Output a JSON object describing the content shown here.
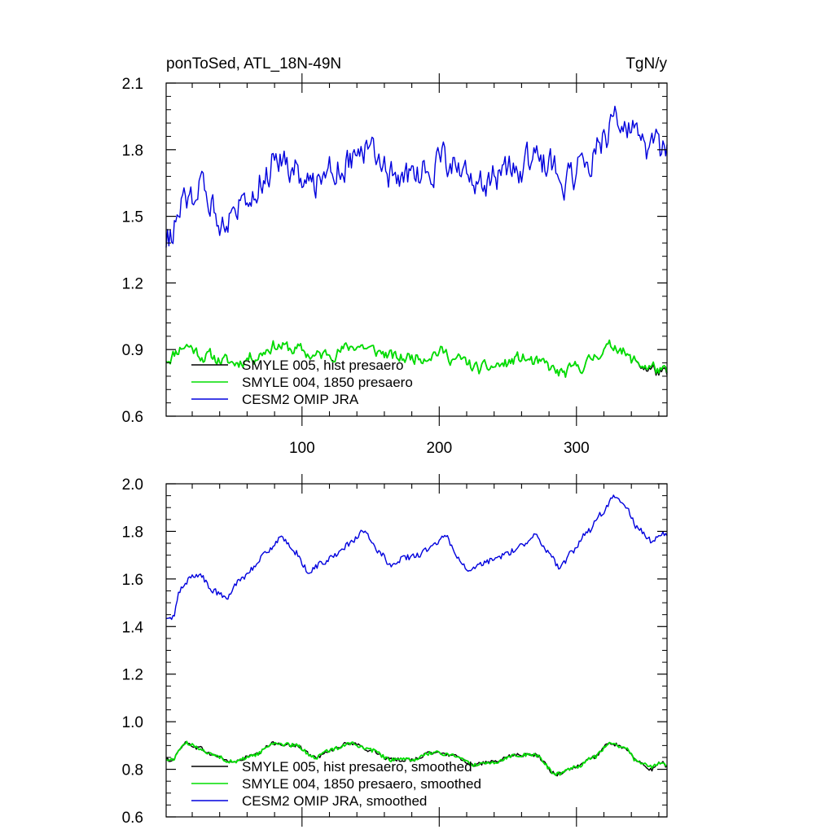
{
  "chart_data": [
    {
      "type": "line",
      "title": "ponToSed, ATL_18N-49N",
      "units": "TgN/y",
      "xlim": [
        1,
        366
      ],
      "ylim": [
        0.6,
        2.1
      ],
      "yticks": [
        "0.6",
        "0.9",
        "1.2",
        "1.5",
        "1.8",
        "2.1"
      ],
      "xticks": [
        "100",
        "200",
        "300"
      ],
      "legend_position": "bottom-left",
      "grid": false,
      "series": [
        {
          "name": "SMYLE 005, hist presaero",
          "color": "#000000",
          "knots": [
            [
              1,
              0.86
            ],
            [
              15,
              0.92
            ],
            [
              30,
              0.87
            ],
            [
              50,
              0.84
            ],
            [
              65,
              0.87
            ],
            [
              80,
              0.92
            ],
            [
              95,
              0.9
            ],
            [
              110,
              0.87
            ],
            [
              125,
              0.89
            ],
            [
              140,
              0.92
            ],
            [
              155,
              0.89
            ],
            [
              170,
              0.86
            ],
            [
              185,
              0.87
            ],
            [
              200,
              0.89
            ],
            [
              215,
              0.85
            ],
            [
              230,
              0.81
            ],
            [
              245,
              0.83
            ],
            [
              260,
              0.86
            ],
            [
              275,
              0.83
            ],
            [
              290,
              0.79
            ],
            [
              305,
              0.83
            ],
            [
              320,
              0.9
            ],
            [
              330,
              0.92
            ],
            [
              340,
              0.85
            ],
            [
              355,
              0.81
            ],
            [
              366,
              0.78
            ]
          ],
          "amp": 0.035
        },
        {
          "name": "SMYLE 004, 1850 presaero",
          "color": "#00dd00",
          "knots": [
            [
              1,
              0.86
            ],
            [
              15,
              0.92
            ],
            [
              30,
              0.87
            ],
            [
              50,
              0.84
            ],
            [
              65,
              0.87
            ],
            [
              80,
              0.92
            ],
            [
              95,
              0.9
            ],
            [
              110,
              0.87
            ],
            [
              125,
              0.89
            ],
            [
              140,
              0.92
            ],
            [
              155,
              0.89
            ],
            [
              170,
              0.86
            ],
            [
              185,
              0.87
            ],
            [
              200,
              0.89
            ],
            [
              215,
              0.85
            ],
            [
              230,
              0.81
            ],
            [
              245,
              0.83
            ],
            [
              260,
              0.86
            ],
            [
              275,
              0.83
            ],
            [
              290,
              0.79
            ],
            [
              305,
              0.83
            ],
            [
              320,
              0.9
            ],
            [
              330,
              0.92
            ],
            [
              340,
              0.85
            ],
            [
              355,
              0.82
            ],
            [
              366,
              0.79
            ]
          ],
          "amp": 0.035
        },
        {
          "name": "CESM2 OMIP JRA",
          "color": "#0000dd",
          "knots": [
            [
              1,
              1.39
            ],
            [
              8,
              1.46
            ],
            [
              15,
              1.57
            ],
            [
              25,
              1.62
            ],
            [
              35,
              1.55
            ],
            [
              42,
              1.5
            ],
            [
              50,
              1.52
            ],
            [
              60,
              1.62
            ],
            [
              70,
              1.67
            ],
            [
              82,
              1.77
            ],
            [
              95,
              1.72
            ],
            [
              105,
              1.63
            ],
            [
              115,
              1.7
            ],
            [
              130,
              1.75
            ],
            [
              145,
              1.8
            ],
            [
              160,
              1.72
            ],
            [
              170,
              1.65
            ],
            [
              185,
              1.7
            ],
            [
              200,
              1.76
            ],
            [
              210,
              1.72
            ],
            [
              225,
              1.62
            ],
            [
              240,
              1.68
            ],
            [
              255,
              1.7
            ],
            [
              270,
              1.76
            ],
            [
              280,
              1.73
            ],
            [
              290,
              1.66
            ],
            [
              305,
              1.72
            ],
            [
              318,
              1.85
            ],
            [
              330,
              1.95
            ],
            [
              340,
              1.88
            ],
            [
              350,
              1.78
            ],
            [
              360,
              1.8
            ],
            [
              366,
              1.76
            ]
          ],
          "amp": 0.09
        }
      ]
    },
    {
      "type": "line",
      "xlim": [
        1,
        366
      ],
      "ylim": [
        0.6,
        2.0
      ],
      "yticks": [
        "0.6",
        "0.8",
        "1.0",
        "1.2",
        "1.4",
        "1.6",
        "1.8",
        "2.0"
      ],
      "xticks": [],
      "legend_position": "bottom-left",
      "grid": false,
      "series": [
        {
          "name": "SMYLE 005, hist presaero, smoothed",
          "color": "#000000",
          "knots": [
            [
              5,
              0.84
            ],
            [
              15,
              0.91
            ],
            [
              25,
              0.89
            ],
            [
              35,
              0.86
            ],
            [
              50,
              0.83
            ],
            [
              65,
              0.86
            ],
            [
              80,
              0.91
            ],
            [
              95,
              0.9
            ],
            [
              110,
              0.85
            ],
            [
              120,
              0.88
            ],
            [
              135,
              0.91
            ],
            [
              150,
              0.88
            ],
            [
              165,
              0.84
            ],
            [
              180,
              0.84
            ],
            [
              195,
              0.87
            ],
            [
              210,
              0.86
            ],
            [
              225,
              0.82
            ],
            [
              240,
              0.83
            ],
            [
              255,
              0.86
            ],
            [
              270,
              0.86
            ],
            [
              285,
              0.78
            ],
            [
              300,
              0.81
            ],
            [
              312,
              0.85
            ],
            [
              325,
              0.91
            ],
            [
              335,
              0.89
            ],
            [
              345,
              0.83
            ],
            [
              355,
              0.8
            ],
            [
              362,
              0.83
            ],
            [
              366,
              0.81
            ]
          ],
          "amp": 0.008
        },
        {
          "name": "SMYLE 004, 1850 presaero, smoothed",
          "color": "#00dd00",
          "knots": [
            [
              5,
              0.84
            ],
            [
              15,
              0.91
            ],
            [
              25,
              0.89
            ],
            [
              35,
              0.86
            ],
            [
              50,
              0.83
            ],
            [
              65,
              0.86
            ],
            [
              80,
              0.91
            ],
            [
              95,
              0.9
            ],
            [
              110,
              0.85
            ],
            [
              120,
              0.88
            ],
            [
              135,
              0.91
            ],
            [
              150,
              0.88
            ],
            [
              165,
              0.84
            ],
            [
              180,
              0.84
            ],
            [
              195,
              0.87
            ],
            [
              210,
              0.86
            ],
            [
              225,
              0.82
            ],
            [
              240,
              0.83
            ],
            [
              255,
              0.86
            ],
            [
              270,
              0.86
            ],
            [
              285,
              0.78
            ],
            [
              300,
              0.81
            ],
            [
              312,
              0.85
            ],
            [
              325,
              0.91
            ],
            [
              335,
              0.89
            ],
            [
              345,
              0.83
            ],
            [
              355,
              0.81
            ],
            [
              362,
              0.83
            ],
            [
              366,
              0.82
            ]
          ],
          "amp": 0.008
        },
        {
          "name": "CESM2 OMIP JRA, smoothed",
          "color": "#0000dd",
          "knots": [
            [
              5,
              1.43
            ],
            [
              12,
              1.56
            ],
            [
              20,
              1.61
            ],
            [
              25,
              1.62
            ],
            [
              35,
              1.55
            ],
            [
              45,
              1.52
            ],
            [
              55,
              1.6
            ],
            [
              65,
              1.65
            ],
            [
              75,
              1.72
            ],
            [
              85,
              1.77
            ],
            [
              95,
              1.71
            ],
            [
              105,
              1.63
            ],
            [
              115,
              1.67
            ],
            [
              125,
              1.7
            ],
            [
              135,
              1.75
            ],
            [
              145,
              1.8
            ],
            [
              155,
              1.72
            ],
            [
              165,
              1.66
            ],
            [
              175,
              1.69
            ],
            [
              185,
              1.7
            ],
            [
              195,
              1.74
            ],
            [
              205,
              1.78
            ],
            [
              212,
              1.7
            ],
            [
              222,
              1.63
            ],
            [
              230,
              1.66
            ],
            [
              240,
              1.68
            ],
            [
              250,
              1.71
            ],
            [
              260,
              1.74
            ],
            [
              270,
              1.79
            ],
            [
              278,
              1.72
            ],
            [
              288,
              1.65
            ],
            [
              298,
              1.72
            ],
            [
              308,
              1.8
            ],
            [
              318,
              1.87
            ],
            [
              328,
              1.95
            ],
            [
              336,
              1.9
            ],
            [
              345,
              1.81
            ],
            [
              355,
              1.76
            ],
            [
              362,
              1.79
            ],
            [
              366,
              1.78
            ]
          ],
          "amp": 0.012
        }
      ]
    }
  ]
}
